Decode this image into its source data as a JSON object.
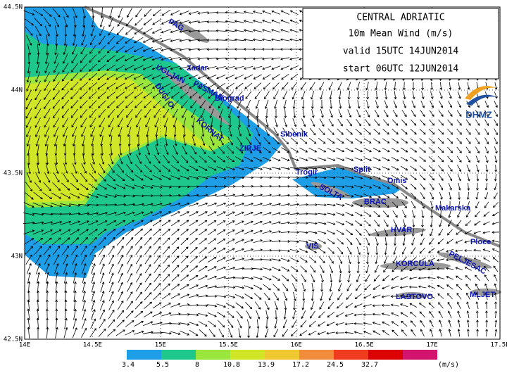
{
  "header": {
    "lines": [
      "CENTRAL ADRIATIC",
      "10m Mean Wind (m/s)",
      "valid 15UTC 14JUN2014",
      "start 06UTC 12JUN2014"
    ],
    "logo": "DHMZ"
  },
  "axes": {
    "lat_labels": [
      "44.5N",
      "44N",
      "43.5N",
      "43N",
      "42.5N"
    ],
    "lon_labels": [
      "14E",
      "14.5E",
      "15E",
      "15.5E",
      "16E",
      "16.5E",
      "17E",
      "17.5E"
    ]
  },
  "places": [
    "PAG",
    "Zadar",
    "UGLJAN",
    "PASMAN",
    "Biograd",
    "DUGI O.",
    "KORNAT",
    "Sibenik",
    "ZIRJE",
    "Trogir",
    "Split",
    "SOLTA",
    "Omis",
    "BRAC",
    "Makarska",
    "HVAR",
    "VIS",
    "Ploce",
    "KORCULA",
    "PELJESAC",
    "LASTOVO",
    "MLJET"
  ],
  "legend": {
    "levels": [
      3.4,
      5.5,
      8,
      10.8,
      13.9,
      17.2,
      24.5,
      32.7
    ],
    "unit": "(m/s)",
    "colors": [
      "#1e9ee6",
      "#1ec88c",
      "#9be63c",
      "#d2e628",
      "#f0c832",
      "#f08c3c",
      "#f03c1e",
      "#dc0000",
      "#d2146e"
    ]
  }
}
